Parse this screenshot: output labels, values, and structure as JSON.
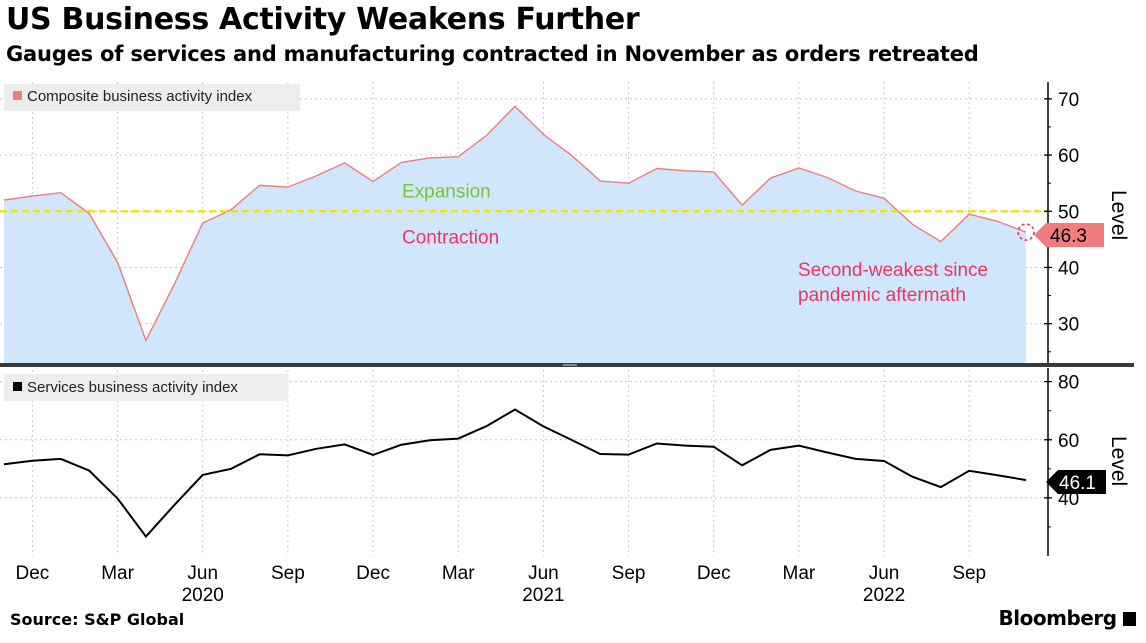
{
  "header": {
    "title": "US Business Activity Weakens Further",
    "subtitle": "Gauges of services and manufacturing contracted in November as orders retreated"
  },
  "footer": {
    "source": "Source: S&P Global",
    "brand": "Bloomberg"
  },
  "colors": {
    "composite_line": "#ef7b7f",
    "composite_fill": "#cfe6fb",
    "threshold": "#f2e100",
    "expansion_text": "#7cc437",
    "contraction_text": "#e8385f",
    "services_line": "#000000",
    "label_composite_bg": "#f07c80",
    "label_services_bg": "#000000"
  },
  "chart_data": [
    {
      "type": "area",
      "legend": "Composite business activity index",
      "legend_placement": "top-left",
      "ylabel": "Level",
      "yticks": [
        30,
        40,
        50,
        60,
        70
      ],
      "ylim": [
        23,
        73
      ],
      "grid": true,
      "threshold": {
        "value": 50,
        "above_label": "Expansion",
        "below_label": "Contraction"
      },
      "annotation": {
        "line1": "Second-weakest since",
        "line2": "pandemic aftermath"
      },
      "last_value_label": "46.3",
      "x": [
        "2019-11",
        "2019-12",
        "2020-01",
        "2020-02",
        "2020-03",
        "2020-04",
        "2020-05",
        "2020-06",
        "2020-07",
        "2020-08",
        "2020-09",
        "2020-10",
        "2020-11",
        "2020-12",
        "2021-01",
        "2021-02",
        "2021-03",
        "2021-04",
        "2021-05",
        "2021-06",
        "2021-07",
        "2021-08",
        "2021-09",
        "2021-10",
        "2021-11",
        "2021-12",
        "2022-01",
        "2022-02",
        "2022-03",
        "2022-04",
        "2022-05",
        "2022-06",
        "2022-07",
        "2022-08",
        "2022-09",
        "2022-10",
        "2022-11"
      ],
      "values": [
        52.0,
        52.7,
        53.3,
        49.6,
        40.9,
        27.0,
        37.0,
        47.9,
        50.3,
        54.6,
        54.3,
        56.3,
        58.6,
        55.3,
        58.7,
        59.5,
        59.7,
        63.5,
        68.7,
        63.7,
        59.9,
        55.4,
        55.0,
        57.6,
        57.2,
        57.0,
        51.1,
        55.9,
        57.7,
        56.0,
        53.6,
        52.3,
        47.7,
        44.6,
        49.5,
        48.2,
        46.3
      ]
    },
    {
      "type": "line",
      "legend": "Services business activity index",
      "legend_placement": "top-left",
      "ylabel": "Level",
      "yticks": [
        40,
        60,
        80
      ],
      "ylim": [
        20,
        84
      ],
      "grid": true,
      "last_value_label": "46.1",
      "x": [
        "2019-11",
        "2019-12",
        "2020-01",
        "2020-02",
        "2020-03",
        "2020-04",
        "2020-05",
        "2020-06",
        "2020-07",
        "2020-08",
        "2020-09",
        "2020-10",
        "2020-11",
        "2020-12",
        "2021-01",
        "2021-02",
        "2021-03",
        "2021-04",
        "2021-05",
        "2021-06",
        "2021-07",
        "2021-08",
        "2021-09",
        "2021-10",
        "2021-11",
        "2021-12",
        "2022-01",
        "2022-02",
        "2022-03",
        "2022-04",
        "2022-05",
        "2022-06",
        "2022-07",
        "2022-08",
        "2022-09",
        "2022-10",
        "2022-11"
      ],
      "values": [
        51.6,
        52.8,
        53.4,
        49.4,
        39.8,
        26.7,
        37.5,
        47.9,
        50.0,
        55.0,
        54.6,
        56.9,
        58.4,
        54.8,
        58.3,
        59.8,
        60.4,
        64.7,
        70.4,
        64.6,
        59.9,
        55.1,
        54.9,
        58.7,
        58.0,
        57.6,
        51.2,
        56.5,
        58.0,
        55.6,
        53.4,
        52.7,
        47.3,
        43.7,
        49.3,
        47.8,
        46.1
      ]
    }
  ],
  "x_axis": {
    "month_ticks": [
      {
        "idx": 1,
        "label": "Dec"
      },
      {
        "idx": 4,
        "label": "Mar"
      },
      {
        "idx": 7,
        "label": "Jun"
      },
      {
        "idx": 10,
        "label": "Sep"
      },
      {
        "idx": 13,
        "label": "Dec"
      },
      {
        "idx": 16,
        "label": "Mar"
      },
      {
        "idx": 19,
        "label": "Jun"
      },
      {
        "idx": 22,
        "label": "Sep"
      },
      {
        "idx": 25,
        "label": "Dec"
      },
      {
        "idx": 28,
        "label": "Mar"
      },
      {
        "idx": 31,
        "label": "Jun"
      },
      {
        "idx": 34,
        "label": "Sep"
      }
    ],
    "year_ticks": [
      {
        "idx": 7,
        "label": "2020"
      },
      {
        "idx": 19,
        "label": "2021"
      },
      {
        "idx": 31,
        "label": "2022"
      }
    ]
  }
}
